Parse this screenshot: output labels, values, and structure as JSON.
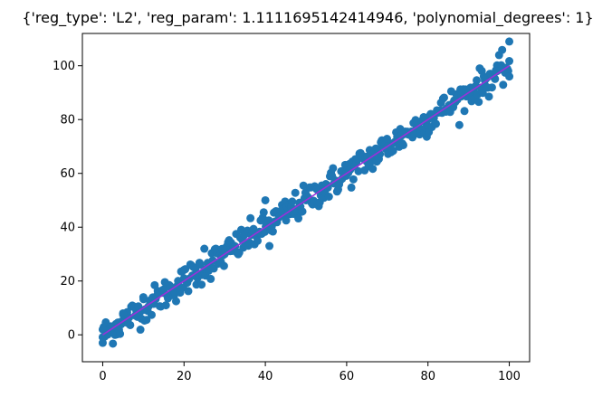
{
  "chart_data": {
    "type": "scatter",
    "title": "{'reg_type': 'L2', 'reg_param': 1.1111695142414946, 'polynomial_degrees': 1}",
    "xlabel": "",
    "ylabel": "",
    "xlim": [
      -5,
      105
    ],
    "ylim": [
      -10,
      112
    ],
    "x_ticks": [
      0,
      20,
      40,
      60,
      80,
      100
    ],
    "y_ticks": [
      0,
      20,
      40,
      60,
      80,
      100
    ],
    "grid": false,
    "colors": {
      "points": "#1f77b4",
      "fit_line": "#9b30d9"
    },
    "scatter": {
      "x_range": [
        0,
        100
      ],
      "count": 400,
      "noise_sd": 2.8,
      "sample_points": [
        {
          "x": 0,
          "y": -3
        },
        {
          "x": 0,
          "y": 2
        },
        {
          "x": 5,
          "y": 8
        },
        {
          "x": 10,
          "y": 14
        },
        {
          "x": 20,
          "y": 21
        },
        {
          "x": 25,
          "y": 32
        },
        {
          "x": 30,
          "y": 30
        },
        {
          "x": 40,
          "y": 50
        },
        {
          "x": 41,
          "y": 33
        },
        {
          "x": 50,
          "y": 50
        },
        {
          "x": 60,
          "y": 60
        },
        {
          "x": 70,
          "y": 70
        },
        {
          "x": 80,
          "y": 80
        },
        {
          "x": 90,
          "y": 90
        },
        {
          "x": 97,
          "y": 98
        },
        {
          "x": 100,
          "y": 109
        },
        {
          "x": 100,
          "y": 96
        }
      ]
    },
    "fit_line": {
      "x": [
        0,
        100
      ],
      "y": [
        0,
        100
      ]
    }
  }
}
